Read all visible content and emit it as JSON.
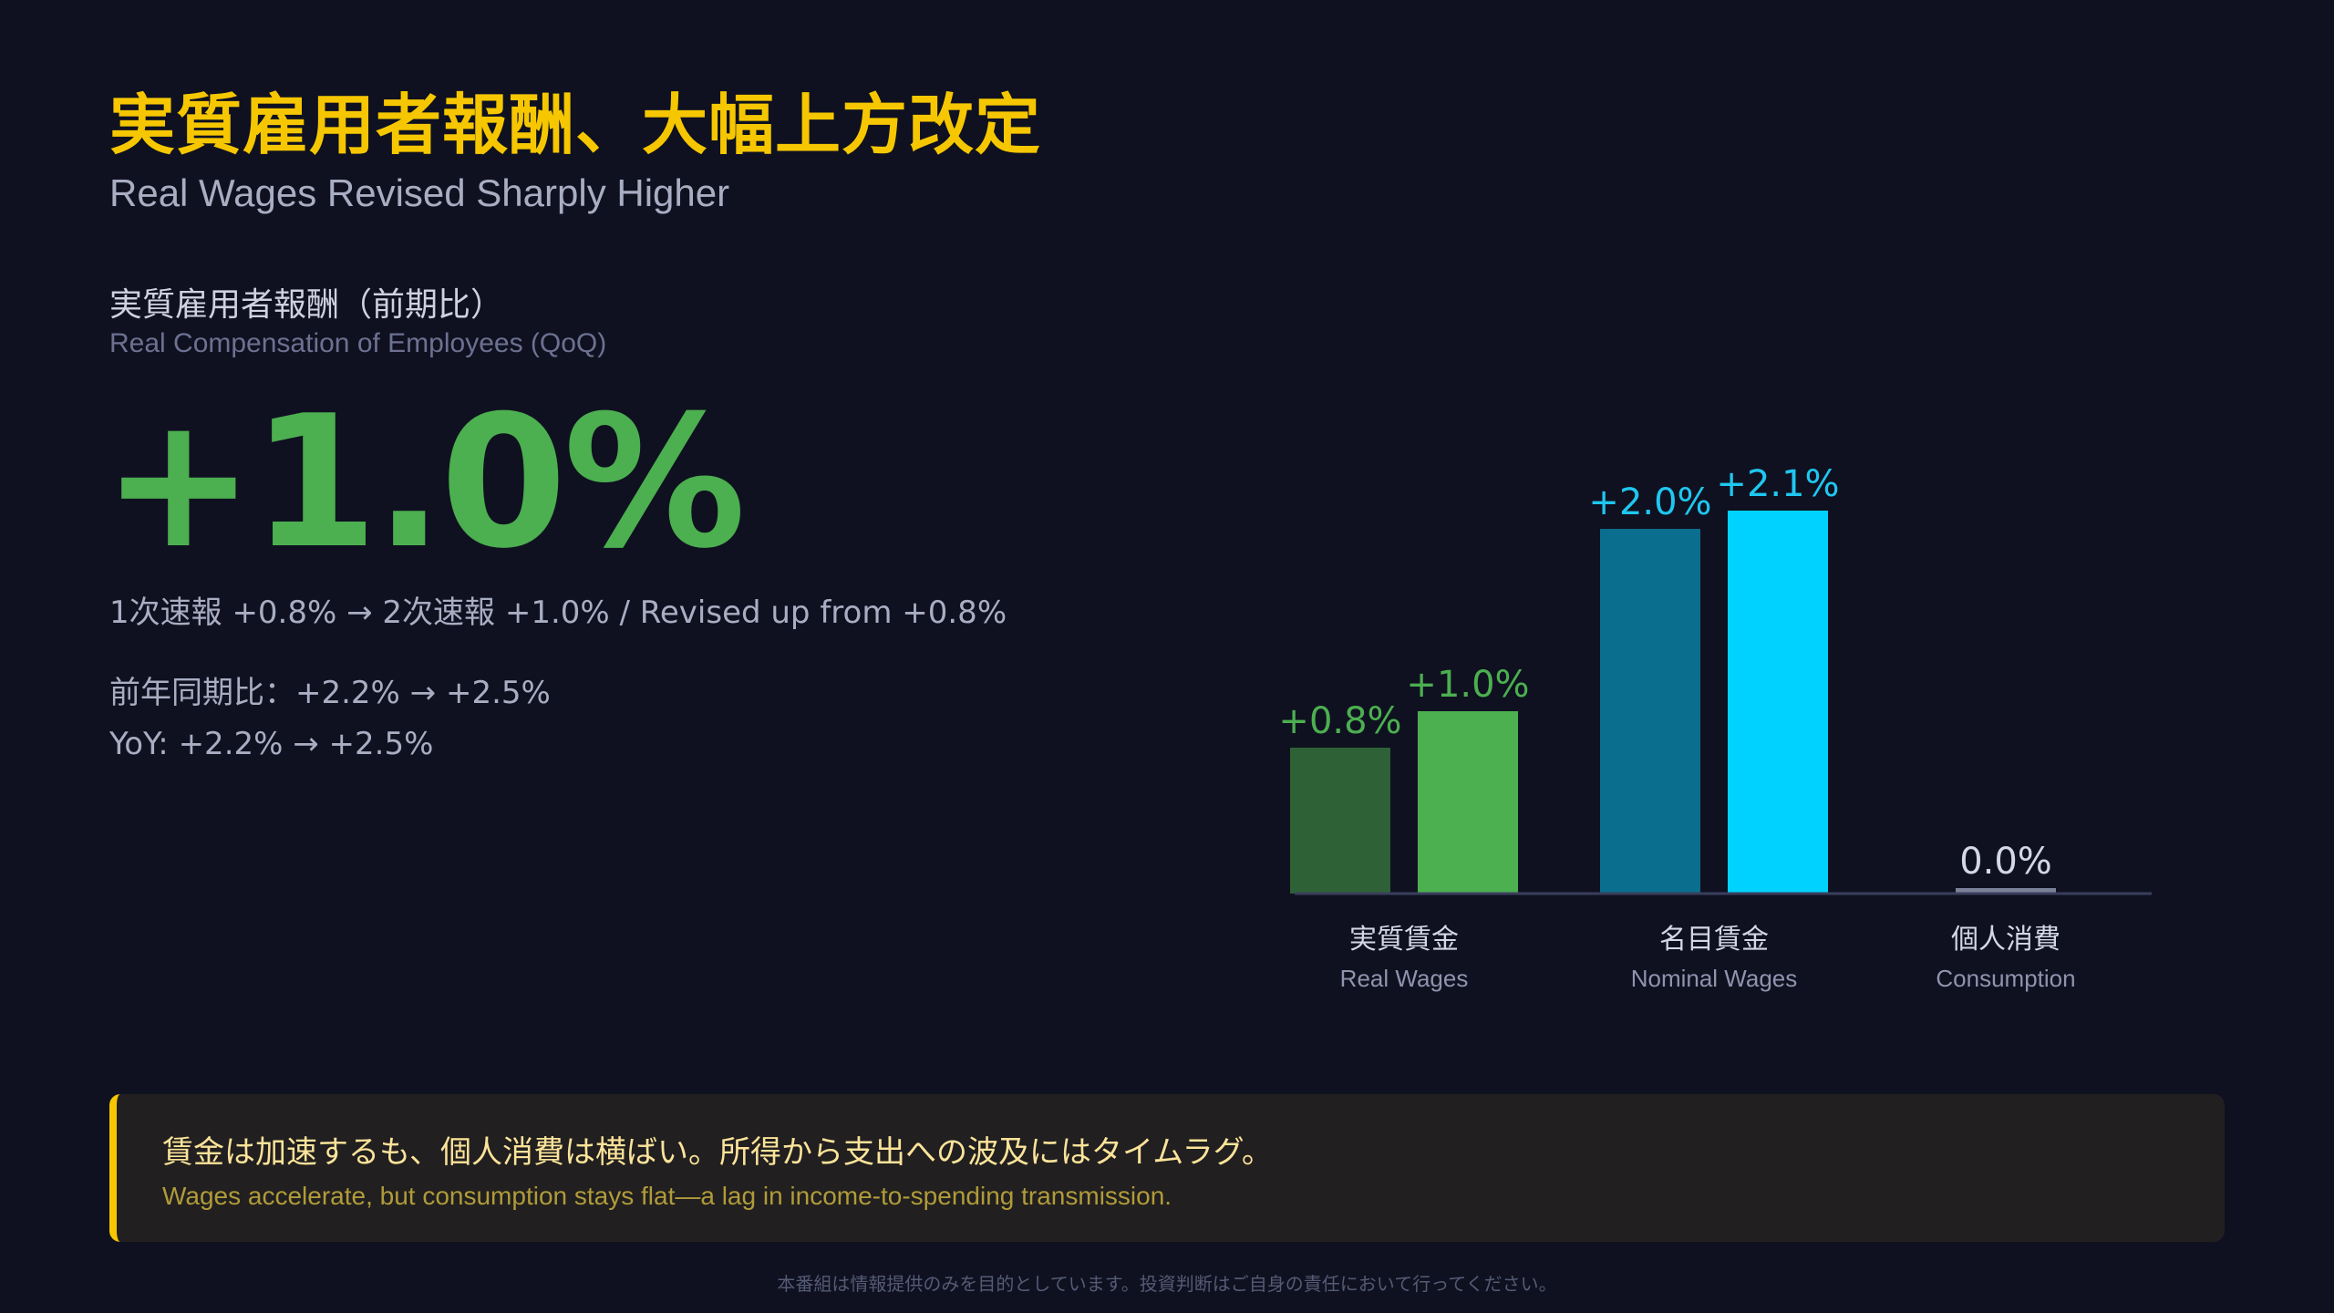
{
  "header": {
    "title": "実質雇用者報酬、大幅上方改定",
    "subtitle": "Real Wages Revised Sharply Higher"
  },
  "metric": {
    "label_jp": "実質雇用者報酬（前期比）",
    "label_en": "Real Compensation of Employees (QoQ)",
    "value": "+1.0%",
    "revision_note": "1次速報 +0.8% → 2次速報 +1.0% / Revised up from +0.8%",
    "yoy_jp": "前年同期比：+2.2% → +2.5%",
    "yoy_en": "YoY: +2.2% → +2.5%",
    "color": "#4caf50"
  },
  "chart_data": {
    "type": "bar",
    "title": "",
    "xlabel": "",
    "ylabel": "",
    "categories": [
      {
        "jp": "実質賃金",
        "en": "Real Wages"
      },
      {
        "jp": "名目賃金",
        "en": "Nominal Wages"
      },
      {
        "jp": "個人消費",
        "en": "Consumption"
      }
    ],
    "bars": [
      {
        "category_index": 0,
        "value": 0.8,
        "label": "+0.8%",
        "color": "#2e6136",
        "label_color": "#4caf50"
      },
      {
        "category_index": 0,
        "value": 1.0,
        "label": "+1.0%",
        "color": "#4caf50",
        "label_color": "#4caf50"
      },
      {
        "category_index": 1,
        "value": 2.0,
        "label": "+2.0%",
        "color": "#0a6e8e",
        "label_color": "#1fc7f0"
      },
      {
        "category_index": 1,
        "value": 2.1,
        "label": "+2.1%",
        "color": "#00d2ff",
        "label_color": "#1fc7f0"
      },
      {
        "category_index": 2,
        "value": 0.0,
        "label": "0.0%",
        "color": "#7a8199",
        "label_color": "#d4d7e6"
      }
    ],
    "ylim": [
      0,
      2.1
    ],
    "grid": false,
    "legend": "none"
  },
  "callout": {
    "jp": "賃金は加速するも、個人消費は横ばい。所得から支出への波及にはタイムラグ。",
    "en": "Wages accelerate, but consumption stays flat—a lag in income-to-spending transmission.",
    "accent": "#f6c700"
  },
  "footer": {
    "disclaimer": "本番組は情報提供のみを目的としています。投資判断はご自身の責任において行ってください。"
  }
}
